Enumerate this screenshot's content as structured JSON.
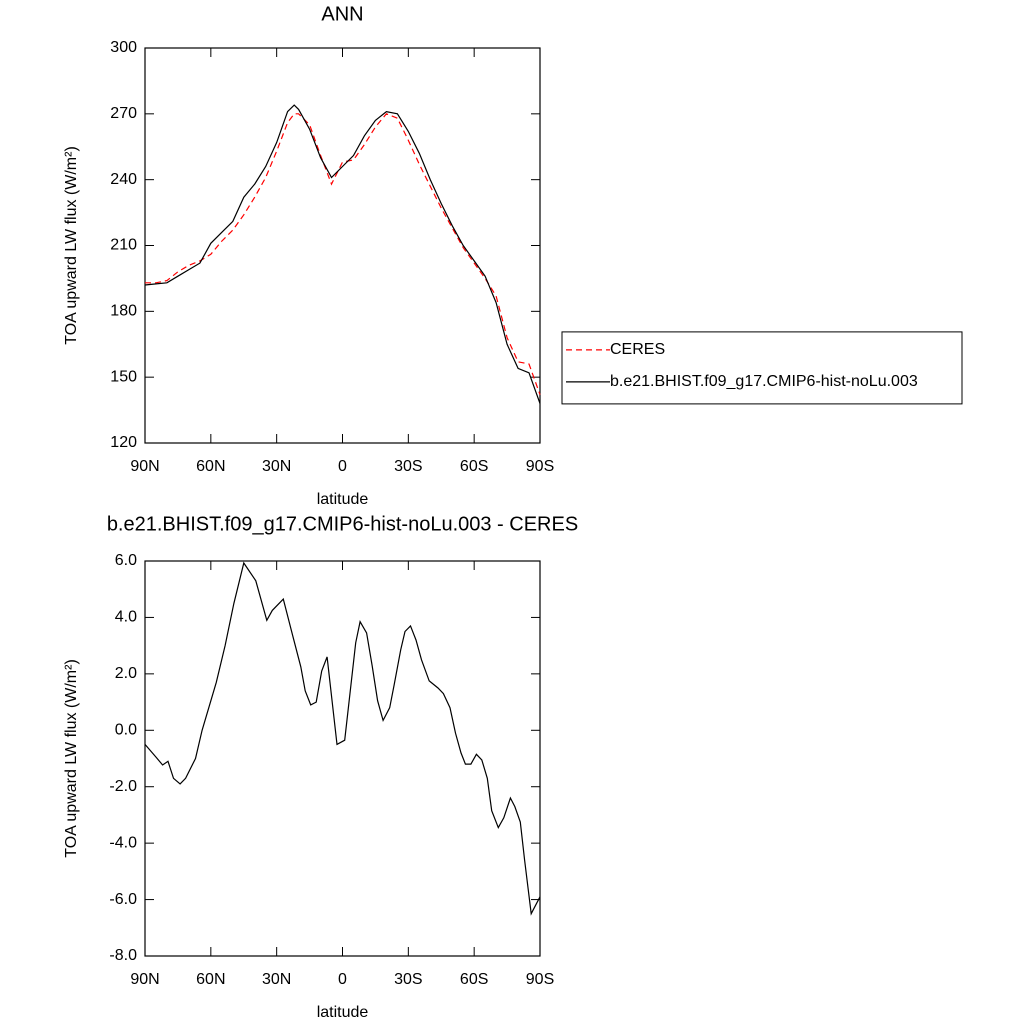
{
  "chart_data": [
    {
      "type": "line",
      "title": "ANN",
      "xlabel": "latitude",
      "ylabel": "TOA upward LW flux (W/m²)",
      "x": [
        90,
        85,
        80,
        75,
        70,
        65,
        60,
        55,
        50,
        45,
        40,
        35,
        30,
        25,
        22,
        20,
        15,
        10,
        5,
        0,
        -5,
        -10,
        -15,
        -20,
        -25,
        -30,
        -35,
        -40,
        -45,
        -50,
        -55,
        -60,
        -65,
        -70,
        -75,
        -80,
        -85,
        -90
      ],
      "series": [
        {
          "name": "CERES",
          "color": "#ff0000",
          "dash": true,
          "values": [
            193,
            193,
            194,
            198,
            201,
            203,
            206,
            212,
            217,
            224,
            232,
            241,
            253,
            266,
            270,
            270,
            265,
            251,
            238,
            248,
            249,
            256,
            264,
            270,
            268,
            258,
            247,
            237,
            227,
            218,
            209,
            202,
            195,
            187,
            168,
            157,
            156,
            142
          ]
        },
        {
          "name": "b.e21.BHIST.f09_g17.CMIP6-hist-noLu.003",
          "color": "#000000",
          "dash": false,
          "values": [
            192,
            192.5,
            193,
            196,
            199,
            202,
            211,
            216,
            221,
            232,
            238,
            246,
            257,
            271,
            274,
            272,
            263,
            250,
            241,
            246,
            251,
            260,
            267,
            271,
            270,
            262,
            252,
            240,
            229,
            219,
            210,
            203,
            196,
            184,
            165,
            154,
            152,
            138
          ]
        }
      ],
      "xlim": [
        90,
        -90
      ],
      "ylim": [
        120,
        300
      ],
      "xticks": [
        {
          "value": 90,
          "label": "90N"
        },
        {
          "value": 60,
          "label": "60N"
        },
        {
          "value": 30,
          "label": "30N"
        },
        0,
        {
          "value": -30,
          "label": "30S"
        },
        {
          "value": -60,
          "label": "60S"
        },
        {
          "value": -90,
          "label": "90S"
        }
      ],
      "yticks": [
        120,
        150,
        180,
        210,
        240,
        270,
        300
      ],
      "legend": "right"
    },
    {
      "type": "line",
      "title": "b.e21.BHIST.f09_g17.CMIP6-hist-noLu.003 - CERES",
      "xlabel": "latitude",
      "ylabel": "TOA upward LW flux (W/m²)",
      "x": [
        90,
        85,
        82,
        79.5,
        77,
        74,
        71.5,
        67,
        64,
        57.5,
        53.5,
        49.5,
        45,
        39.5,
        34.5,
        32,
        27,
        22.5,
        19,
        17,
        14.5,
        12,
        9.5,
        7,
        2.5,
        -1,
        -6,
        -8,
        -11,
        -13.5,
        -16,
        -18.5,
        -21.5,
        -23.5,
        -26.5,
        -28.5,
        -31,
        -33.5,
        -36,
        -39.5,
        -43.5,
        -46,
        -49,
        -51.5,
        -54,
        -56,
        -58.5,
        -61,
        -63.5,
        -66,
        -68,
        -71,
        -73.5,
        -76.5,
        -78.5,
        -81,
        -83,
        -86,
        -90
      ],
      "values": [
        -0.5,
        -0.95,
        -1.23,
        -1.1,
        -1.7,
        -1.9,
        -1.7,
        -1.0,
        0.0,
        1.7,
        3.0,
        4.5,
        5.93,
        5.3,
        3.9,
        4.25,
        4.65,
        3.3,
        2.25,
        1.4,
        0.9,
        1.0,
        2.1,
        2.6,
        -0.5,
        -0.35,
        3.1,
        3.85,
        3.45,
        2.3,
        1.05,
        0.35,
        0.8,
        1.6,
        2.85,
        3.5,
        3.7,
        3.2,
        2.5,
        1.75,
        1.5,
        1.3,
        0.8,
        -0.1,
        -0.8,
        -1.2,
        -1.2,
        -0.85,
        -1.05,
        -1.7,
        -2.85,
        -3.45,
        -3.1,
        -2.4,
        -2.7,
        -3.25,
        -4.6,
        -6.5,
        -5.9
      ],
      "color": "#000000",
      "xlim": [
        90,
        -90
      ],
      "ylim": [
        -8,
        6
      ],
      "xticks": [
        {
          "value": 90,
          "label": "90N"
        },
        {
          "value": 60,
          "label": "60N"
        },
        {
          "value": 30,
          "label": "30N"
        },
        0,
        {
          "value": -30,
          "label": "30S"
        },
        {
          "value": -60,
          "label": "60S"
        },
        {
          "value": -90,
          "label": "90S"
        }
      ],
      "yticks": [
        {
          "value": -8,
          "label": "-8.0"
        },
        {
          "value": -6,
          "label": "-6.0"
        },
        {
          "value": -4,
          "label": "-4.0"
        },
        {
          "value": -2,
          "label": "-2.0"
        },
        {
          "value": 0,
          "label": "0.0"
        },
        {
          "value": 2,
          "label": "2.0"
        },
        {
          "value": 4,
          "label": "4.0"
        },
        {
          "value": 6,
          "label": "6.0"
        }
      ]
    }
  ]
}
